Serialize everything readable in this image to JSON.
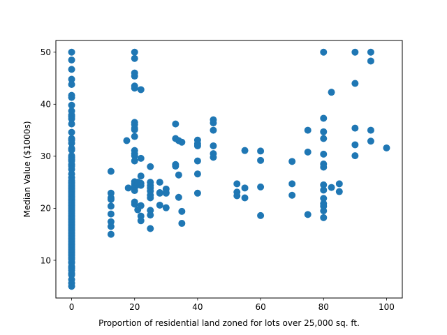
{
  "chart_data": {
    "type": "scatter",
    "title": "",
    "xlabel": "Proportion of residential land zoned for lots over 25,000 sq. ft.",
    "ylabel": "Median Value ($1000s)",
    "xlim": [
      -5,
      105
    ],
    "ylim": [
      2.75,
      52.25
    ],
    "xticks": [
      0,
      20,
      40,
      60,
      80,
      100
    ],
    "yticks": [
      10,
      20,
      30,
      40,
      50
    ],
    "grid": false,
    "legend": "none",
    "marker_color": "#1f77b4",
    "points": [
      [
        0,
        50
      ],
      [
        0,
        48.5
      ],
      [
        0,
        46.7
      ],
      [
        0,
        44.8
      ],
      [
        0,
        43.8
      ],
      [
        0,
        41.7
      ],
      [
        0,
        41.3
      ],
      [
        0,
        39.8
      ],
      [
        0,
        38.7
      ],
      [
        0,
        37.9
      ],
      [
        0,
        37.6
      ],
      [
        0,
        37.2
      ],
      [
        0,
        36.2
      ],
      [
        0,
        34.6
      ],
      [
        0,
        33.4
      ],
      [
        0,
        33.1
      ],
      [
        0,
        32.5
      ],
      [
        0,
        31.5
      ],
      [
        0,
        31.2
      ],
      [
        0,
        30.1
      ],
      [
        0,
        29.8
      ],
      [
        0,
        29.4
      ],
      [
        0,
        29.1
      ],
      [
        0,
        28.4
      ],
      [
        0,
        28.1
      ],
      [
        0,
        27.5
      ],
      [
        0,
        26.6
      ],
      [
        0,
        25.9
      ],
      [
        0,
        25.3
      ],
      [
        0,
        25
      ],
      [
        0,
        24.7
      ],
      [
        0,
        24.4
      ],
      [
        0,
        24.1
      ],
      [
        0,
        23.8
      ],
      [
        0,
        23.5
      ],
      [
        0,
        23.2
      ],
      [
        0,
        22.9
      ],
      [
        0,
        22.6
      ],
      [
        0,
        22.3
      ],
      [
        0,
        22
      ],
      [
        0,
        21.7
      ],
      [
        0,
        21.4
      ],
      [
        0,
        21.1
      ],
      [
        0,
        20.8
      ],
      [
        0,
        20.5
      ],
      [
        0,
        20.2
      ],
      [
        0,
        19.9
      ],
      [
        0,
        19.6
      ],
      [
        0,
        19.3
      ],
      [
        0,
        19
      ],
      [
        0,
        18.7
      ],
      [
        0,
        18.4
      ],
      [
        0,
        18.1
      ],
      [
        0,
        17.8
      ],
      [
        0,
        17.5
      ],
      [
        0,
        17.2
      ],
      [
        0,
        16.9
      ],
      [
        0,
        16.6
      ],
      [
        0,
        16.3
      ],
      [
        0,
        16
      ],
      [
        0,
        15.7
      ],
      [
        0,
        15.4
      ],
      [
        0,
        15.1
      ],
      [
        0,
        14.8
      ],
      [
        0,
        14.5
      ],
      [
        0,
        14.2
      ],
      [
        0,
        13.9
      ],
      [
        0,
        13.6
      ],
      [
        0,
        13.3
      ],
      [
        0,
        13
      ],
      [
        0,
        12.7
      ],
      [
        0,
        12.4
      ],
      [
        0,
        12.1
      ],
      [
        0,
        11.8
      ],
      [
        0,
        11.5
      ],
      [
        0,
        11.2
      ],
      [
        0,
        10.9
      ],
      [
        0,
        10.5
      ],
      [
        0,
        10.2
      ],
      [
        0,
        9.7
      ],
      [
        0,
        9.5
      ],
      [
        0,
        8.8
      ],
      [
        0,
        8.5
      ],
      [
        0,
        8.1
      ],
      [
        0,
        7.5
      ],
      [
        0,
        7.2
      ],
      [
        0,
        6.3
      ],
      [
        0,
        5.6
      ],
      [
        0,
        5
      ],
      [
        12.5,
        27.1
      ],
      [
        12.5,
        22.9
      ],
      [
        12.5,
        22
      ],
      [
        12.5,
        21.7
      ],
      [
        12.5,
        20.4
      ],
      [
        12.5,
        18.9
      ],
      [
        12.5,
        17.4
      ],
      [
        12.5,
        16.5
      ],
      [
        12.5,
        15
      ],
      [
        17.5,
        33
      ],
      [
        18,
        23.9
      ],
      [
        20,
        50
      ],
      [
        20,
        48.8
      ],
      [
        20,
        46
      ],
      [
        20,
        45.4
      ],
      [
        20,
        43.5
      ],
      [
        20,
        43.1
      ],
      [
        20,
        36.5
      ],
      [
        20,
        36.1
      ],
      [
        20,
        35.4
      ],
      [
        20,
        35.1
      ],
      [
        20,
        33.8
      ],
      [
        20,
        31.1
      ],
      [
        20,
        30.5
      ],
      [
        20,
        30.1
      ],
      [
        20,
        29.1
      ],
      [
        20,
        25.1
      ],
      [
        20,
        24.8
      ],
      [
        20,
        24.5
      ],
      [
        20,
        24
      ],
      [
        20,
        23.4
      ],
      [
        20,
        21.2
      ],
      [
        20,
        20.8
      ],
      [
        21,
        25
      ],
      [
        21,
        24.5
      ],
      [
        21,
        19.7
      ],
      [
        21,
        24.9
      ],
      [
        22,
        42.8
      ],
      [
        22,
        29.6
      ],
      [
        22,
        26.2
      ],
      [
        22,
        24.8
      ],
      [
        22,
        24.4
      ],
      [
        22,
        20.5
      ],
      [
        22,
        18.5
      ],
      [
        22,
        17.6
      ],
      [
        25,
        28
      ],
      [
        25,
        25
      ],
      [
        25,
        24.4
      ],
      [
        25,
        23.9
      ],
      [
        25,
        23.3
      ],
      [
        25,
        22.5
      ],
      [
        25,
        22
      ],
      [
        25,
        19.6
      ],
      [
        25,
        18.7
      ],
      [
        25,
        16.1
      ],
      [
        28,
        25
      ],
      [
        28,
        23
      ],
      [
        28,
        22.9
      ],
      [
        28,
        20.6
      ],
      [
        30,
        23.7
      ],
      [
        30,
        23
      ],
      [
        30,
        20.1
      ],
      [
        30,
        22.9
      ],
      [
        33,
        36.2
      ],
      [
        33,
        33.4
      ],
      [
        33,
        28.4
      ],
      [
        33,
        28.1
      ],
      [
        34,
        33
      ],
      [
        34,
        26.4
      ],
      [
        34,
        22.1
      ],
      [
        35,
        32.7
      ],
      [
        35,
        19.4
      ],
      [
        35,
        17.1
      ],
      [
        40,
        33.1
      ],
      [
        40,
        32.4
      ],
      [
        40,
        32
      ],
      [
        40,
        29.1
      ],
      [
        40,
        26.6
      ],
      [
        40,
        22.9
      ],
      [
        45,
        37
      ],
      [
        45,
        36.4
      ],
      [
        45,
        35
      ],
      [
        45,
        32
      ],
      [
        45,
        30.5
      ],
      [
        45,
        29.8
      ],
      [
        52.5,
        24.7
      ],
      [
        52.5,
        23.1
      ],
      [
        52.5,
        22.4
      ],
      [
        55,
        31.1
      ],
      [
        55,
        23.9
      ],
      [
        55,
        22
      ],
      [
        60,
        31
      ],
      [
        60,
        29.2
      ],
      [
        60,
        24.1
      ],
      [
        60,
        18.6
      ],
      [
        70,
        29
      ],
      [
        70,
        24.7
      ],
      [
        70,
        22.5
      ],
      [
        75,
        35
      ],
      [
        75,
        30.8
      ],
      [
        75,
        18.8
      ],
      [
        80,
        50
      ],
      [
        80,
        37.3
      ],
      [
        80,
        34.7
      ],
      [
        80,
        33.4
      ],
      [
        80,
        30.4
      ],
      [
        80,
        28.5
      ],
      [
        80,
        27.9
      ],
      [
        80,
        24.5
      ],
      [
        80,
        23.5
      ],
      [
        80,
        21.9
      ],
      [
        80,
        20.9
      ],
      [
        80,
        20.4
      ],
      [
        80,
        19.5
      ],
      [
        80,
        18.2
      ],
      [
        82.5,
        42.3
      ],
      [
        82.5,
        24
      ],
      [
        85,
        24.7
      ],
      [
        85,
        23.2
      ],
      [
        90,
        50
      ],
      [
        90,
        44
      ],
      [
        90,
        35.4
      ],
      [
        90,
        32.2
      ],
      [
        90,
        30.1
      ],
      [
        95,
        50
      ],
      [
        95,
        48.3
      ],
      [
        95,
        35
      ],
      [
        95,
        32.9
      ],
      [
        100,
        31.6
      ]
    ]
  }
}
